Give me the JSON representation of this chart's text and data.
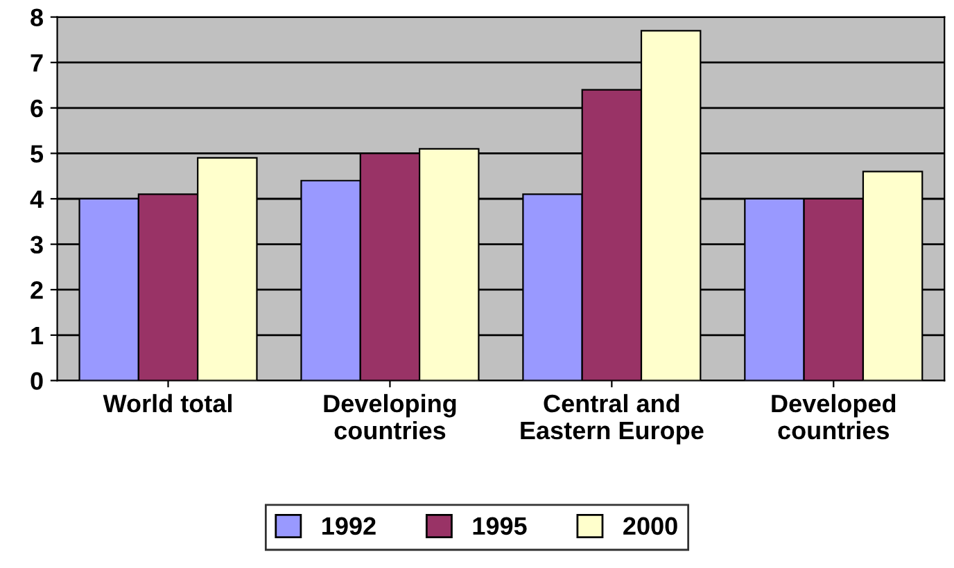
{
  "chart_data": {
    "type": "bar",
    "categories": [
      "World total",
      "Developing\ncountries",
      "Central and\nEastern Europe",
      "Developed\ncountries"
    ],
    "series": [
      {
        "name": "1992",
        "color": "#9999ff",
        "values": [
          4.0,
          4.4,
          4.1,
          4.0
        ]
      },
      {
        "name": "1995",
        "color": "#993366",
        "values": [
          4.1,
          5.0,
          6.4,
          4.0
        ]
      },
      {
        "name": "2000",
        "color": "#ffffcc",
        "values": [
          4.9,
          5.1,
          7.7,
          4.6
        ]
      }
    ],
    "ylim": [
      0,
      8
    ],
    "yticks": [
      0,
      1,
      2,
      3,
      4,
      5,
      6,
      7,
      8
    ],
    "grid": "y",
    "legend": "bottom"
  }
}
